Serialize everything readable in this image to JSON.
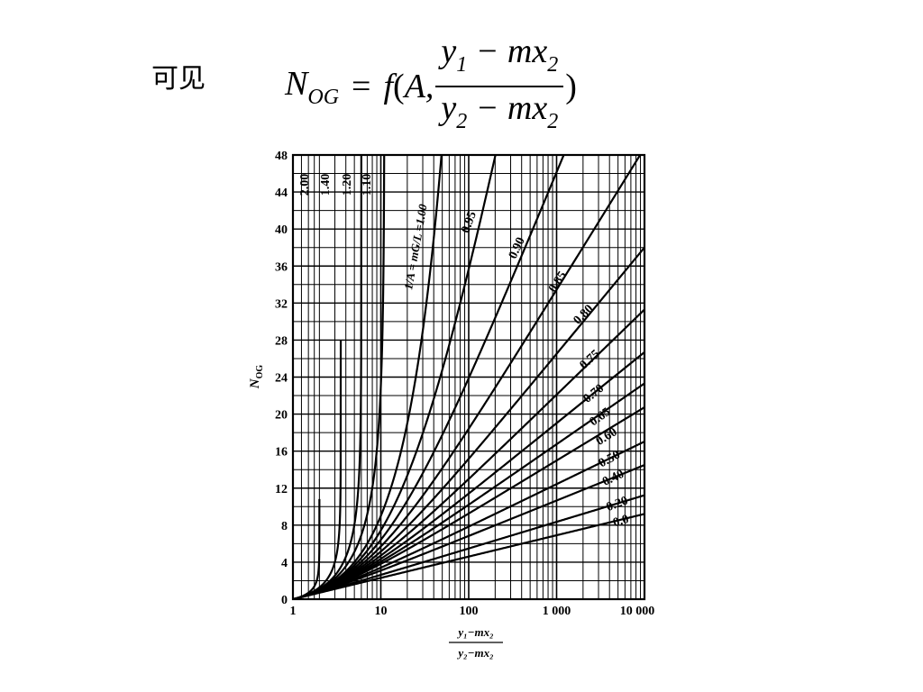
{
  "heading": "可见",
  "formula": {
    "lhs": "N",
    "lhs_sub": "OG",
    "equals": "=",
    "func": "f",
    "open": "(",
    "arg1": "A,",
    "num_y": "y",
    "num_y_sub": "1",
    "num_rest": " − mx",
    "num_x_sub": "2",
    "den_y": "y",
    "den_y_sub": "2",
    "den_rest": " − mx",
    "den_x_sub": "2",
    "close": ")"
  },
  "chart_data": {
    "type": "line",
    "title": "",
    "xlabel": "(y1−mx2)/(y2−mx2)",
    "ylabel": "N_OG",
    "xscale": "log",
    "xlim": [
      1,
      10000
    ],
    "ylim": [
      0,
      48
    ],
    "grid": true,
    "x_ticks": [
      1,
      10,
      100,
      1000,
      10000
    ],
    "x_tick_labels": [
      "1",
      "10",
      "100",
      "1 000",
      "10 000"
    ],
    "y_ticks": [
      0,
      4,
      8,
      12,
      16,
      20,
      24,
      28,
      32,
      36,
      40,
      44,
      48
    ],
    "y_tick_labels": [
      "0",
      "4",
      "8",
      "12",
      "16",
      "20",
      "24",
      "28",
      "32",
      "36",
      "40",
      "44",
      "48"
    ],
    "curve_label_prefix": "1/A = mG/L =",
    "series": [
      {
        "name": "2.00",
        "label": "2.00"
      },
      {
        "name": "1.40",
        "label": "1.40"
      },
      {
        "name": "1.20",
        "label": "1.20"
      },
      {
        "name": "1.10",
        "label": "1.10"
      },
      {
        "name": "1.00",
        "label": "1.00"
      },
      {
        "name": "0.95",
        "label": "0.95"
      },
      {
        "name": "0.90",
        "label": "0.90"
      },
      {
        "name": "0.85",
        "label": "0.85"
      },
      {
        "name": "0.80",
        "label": "0.80"
      },
      {
        "name": "0.75",
        "label": "0.75"
      },
      {
        "name": "0.70",
        "label": "0.70"
      },
      {
        "name": "0.65",
        "label": "0.65"
      },
      {
        "name": "0.60",
        "label": "0.60"
      },
      {
        "name": "0.50",
        "label": "0.50"
      },
      {
        "name": "0.40",
        "label": "0.40"
      },
      {
        "name": "0.20",
        "label": "0.20"
      },
      {
        "name": "0.0",
        "label": "0.0"
      }
    ]
  }
}
